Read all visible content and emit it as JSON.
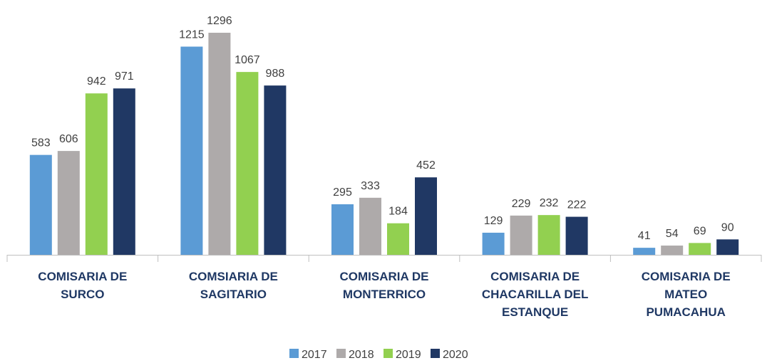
{
  "chart_data": {
    "type": "bar",
    "categories": [
      "COMISARIA DE SURCO",
      "COMSIARIA DE SAGITARIO",
      "COMISARIA DE MONTERRICO",
      "COMISARIA DE CHACARILLA DEL ESTANQUE",
      "COMISARIA DE MATEO PUMACAHUA"
    ],
    "series": [
      {
        "name": "2017",
        "color": "#5b9bd5",
        "values": [
          583,
          1215,
          295,
          129,
          41
        ]
      },
      {
        "name": "2018",
        "color": "#aeaaaa",
        "values": [
          606,
          1296,
          333,
          229,
          54
        ]
      },
      {
        "name": "2019",
        "color": "#92d050",
        "values": [
          942,
          1067,
          184,
          232,
          69
        ]
      },
      {
        "name": "2020",
        "color": "#203864",
        "values": [
          971,
          988,
          452,
          222,
          90
        ]
      }
    ],
    "legend": "bottom"
  }
}
